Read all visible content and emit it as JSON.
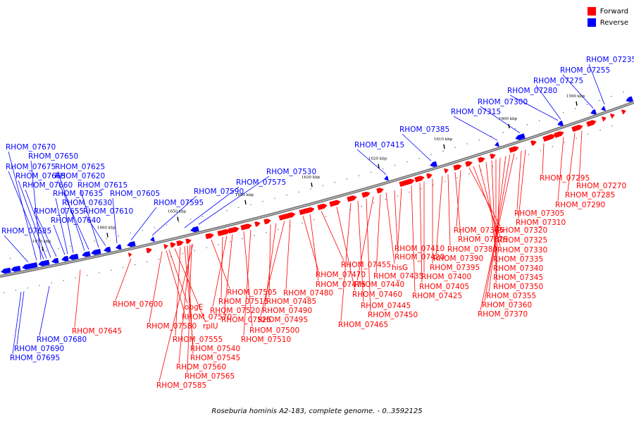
{
  "legend": {
    "forward_label": "Forward",
    "reverse_label": "Reverse",
    "forward_color": "#ff0000",
    "reverse_color": "#0000ff"
  },
  "caption": "Roseburia hominis A2-183, complete genome. - 0..3592125",
  "scale_ticks": [
    "1670 kbp",
    "1660 kbp",
    "1650 kbp",
    "1640 kbp",
    "1630 kbp",
    "1620 kbp",
    "1610 kbp",
    "1600 kbp",
    "1590 kbp"
  ],
  "reverse_top_labels": [
    "RHOM_07670",
    "RHOM_07650",
    "RHOM_07675",
    "RHOM_07625",
    "RHOM_07665",
    "RHOM_07620",
    "RHOM_07660",
    "RHOM_07615",
    "RHOM_07635",
    "RHOM_07605",
    "RHOM_07630",
    "RHOM_07595",
    "RHOM_07655",
    "RHOM_07610",
    "RHOM_07640",
    "RHOM_07685",
    "RHOM_07590",
    "RHOM_07575",
    "RHOM_07530",
    "RHOM_07415",
    "RHOM_07385",
    "RHOM_07315",
    "RHOM_07300",
    "RHOM_07280",
    "RHOM_07275",
    "RHOM_07255",
    "RHOM_07235"
  ],
  "reverse_bottom_labels": [
    "RHOM_07680",
    "RHOM_07690",
    "RHOM_07695"
  ],
  "forward_labels": [
    "RHOM_07600",
    "RHOM_07645",
    "obgE",
    "RHOM_07570",
    "RHOM_07580",
    "rplU",
    "RHOM_07555",
    "RHOM_07540",
    "RHOM_07545",
    "RHOM_07560",
    "RHOM_07565",
    "RHOM_07585",
    "RHOM_07505",
    "RHOM_07515",
    "RHOM_07520",
    "RHOM_07525",
    "RHOM_07500",
    "RHOM_07510",
    "RHOM_07485",
    "RHOM_07490",
    "RHOM_07495",
    "RHOM_07480",
    "RHOM_07470",
    "RHOM_07475",
    "RHOM_07455",
    "RHOM_07460",
    "RHOM_07465",
    "RHOM_07445",
    "RHOM_07450",
    "RHOM_07440",
    "RHOM_07435",
    "hisG",
    "RHOM_07410",
    "RHOM_07420",
    "RHOM_07425",
    "RHOM_07400",
    "RHOM_07405",
    "RHOM_07395",
    "RHOM_07390",
    "RHOM_07380",
    "RHOM_07375",
    "RHOM_07365",
    "RHOM_07320",
    "RHOM_07325",
    "RHOM_07330",
    "RHOM_07335",
    "RHOM_07340",
    "RHOM_07345",
    "RHOM_07350",
    "RHOM_07355",
    "RHOM_07360",
    "RHOM_07370",
    "RHOM_07305",
    "RHOM_07310",
    "RHOM_07295",
    "RHOM_07270",
    "RHOM_07285",
    "RHOM_07290"
  ]
}
